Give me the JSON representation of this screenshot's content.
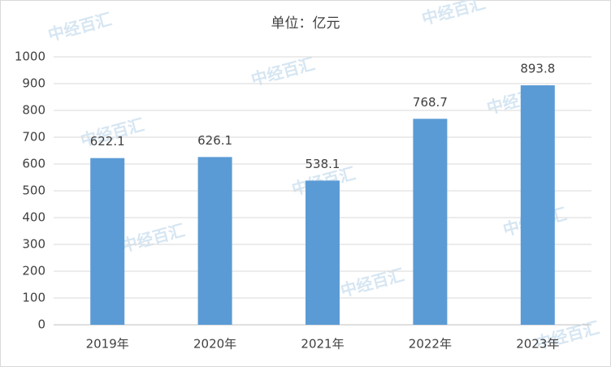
{
  "chart_data": {
    "type": "bar",
    "title": "单位：亿元",
    "categories": [
      "2019年",
      "2020年",
      "2021年",
      "2022年",
      "2023年"
    ],
    "values": [
      622.1,
      626.1,
      538.1,
      768.7,
      893.8
    ],
    "color": "#5b9bd5",
    "ylim": [
      0,
      1000
    ],
    "yticks": [
      0,
      100,
      200,
      300,
      400,
      500,
      600,
      700,
      800,
      900,
      1000
    ],
    "grid": true,
    "watermark": "中经百汇"
  }
}
